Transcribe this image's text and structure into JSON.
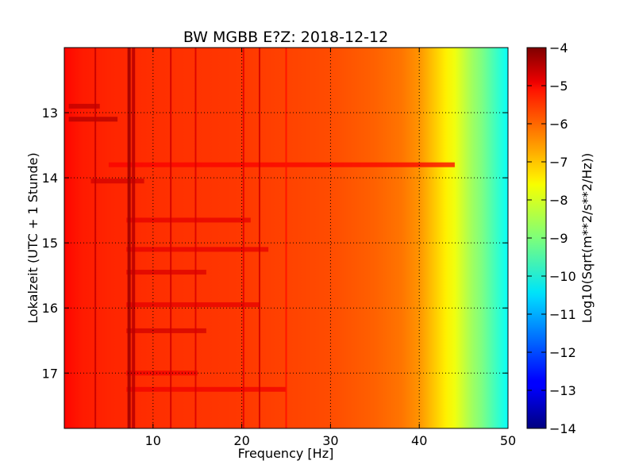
{
  "chart_data": {
    "type": "heatmap",
    "title": "BW MGBB E?Z: 2018-12-12",
    "xlabel": "Frequency [Hz]",
    "ylabel": "Lokalzeit (UTC + 1 Stunde)",
    "xlim": [
      0,
      50
    ],
    "ylim": [
      12.0,
      17.85
    ],
    "y_inverted": true,
    "x_ticks": [
      10,
      20,
      30,
      40,
      50
    ],
    "y_ticks": [
      13,
      14,
      15,
      16,
      17
    ],
    "grid": true,
    "colormap": "jet",
    "colorbar": {
      "label": "Log10(Sqrt(m**2/s**2/Hz))",
      "range": [
        -14,
        -4
      ],
      "ticks": [
        -4,
        -5,
        -6,
        -7,
        -8,
        -9,
        -10,
        -11,
        -12,
        -13,
        -14
      ]
    },
    "spectral_profile": {
      "frequency_hz": [
        0,
        2,
        5,
        10,
        20,
        30,
        35,
        38,
        40,
        41,
        42,
        43,
        44,
        45,
        46,
        47,
        48,
        49,
        50
      ],
      "log10_amplitude": [
        -5.3,
        -5.5,
        -5.6,
        -5.7,
        -5.8,
        -6.0,
        -6.2,
        -6.4,
        -6.7,
        -7.0,
        -7.3,
        -7.6,
        -7.9,
        -8.3,
        -8.7,
        -9.0,
        -9.4,
        -9.8,
        -10.2
      ]
    },
    "persistent_lines_hz": [
      {
        "frequency": 3.5,
        "log10_amplitude": -4.7
      },
      {
        "frequency": 7.3,
        "log10_amplitude": -4.3
      },
      {
        "frequency": 7.8,
        "log10_amplitude": -4.6
      },
      {
        "frequency": 12.0,
        "log10_amplitude": -4.8
      },
      {
        "frequency": 14.8,
        "log10_amplitude": -4.9
      },
      {
        "frequency": 20.2,
        "log10_amplitude": -5.0
      },
      {
        "frequency": 22.0,
        "log10_amplitude": -4.8
      },
      {
        "frequency": 25.0,
        "log10_amplitude": -5.4
      }
    ],
    "transient_bands": [
      {
        "time": 12.9,
        "f_start": 0.5,
        "f_end": 4,
        "log10_amplitude": -4.6
      },
      {
        "time": 13.1,
        "f_start": 0.5,
        "f_end": 6,
        "log10_amplitude": -4.5
      },
      {
        "time": 13.8,
        "f_start": 5,
        "f_end": 44,
        "log10_amplitude": -5.2
      },
      {
        "time": 14.05,
        "f_start": 3,
        "f_end": 9,
        "log10_amplitude": -4.8
      },
      {
        "time": 14.65,
        "f_start": 7,
        "f_end": 21,
        "log10_amplitude": -5.0
      },
      {
        "time": 15.1,
        "f_start": 7,
        "f_end": 23,
        "log10_amplitude": -5.0
      },
      {
        "time": 15.45,
        "f_start": 7,
        "f_end": 16,
        "log10_amplitude": -4.9
      },
      {
        "time": 15.95,
        "f_start": 7,
        "f_end": 22,
        "log10_amplitude": -5.0
      },
      {
        "time": 16.35,
        "f_start": 7,
        "f_end": 16,
        "log10_amplitude": -4.8
      },
      {
        "time": 17.0,
        "f_start": 7,
        "f_end": 15,
        "log10_amplitude": -5.1
      },
      {
        "time": 17.25,
        "f_start": 7,
        "f_end": 25,
        "log10_amplitude": -5.1
      }
    ]
  }
}
